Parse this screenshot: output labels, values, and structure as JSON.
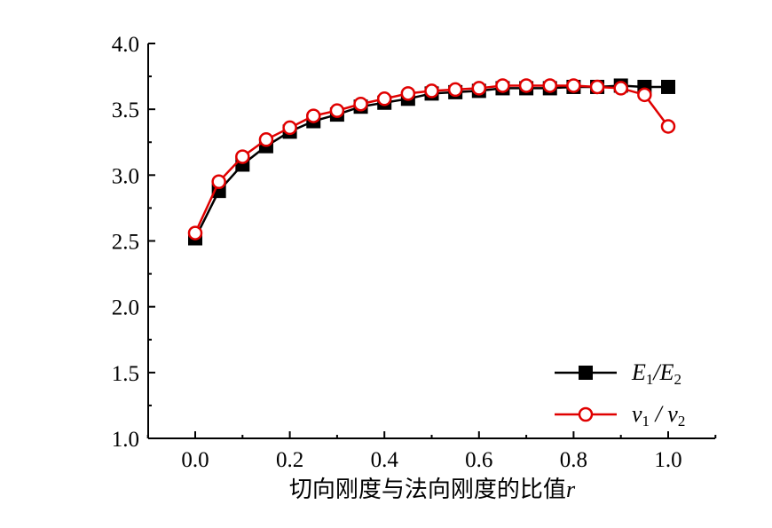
{
  "chart_data": {
    "type": "line",
    "title": "",
    "xlabel": "切向刚度与法向刚度的比值",
    "xlabel_var": "r",
    "ylabel": "",
    "xlim": [
      -0.1,
      1.1
    ],
    "ylim": [
      1.0,
      4.0
    ],
    "xticks": [
      "0.0",
      "0.2",
      "0.4",
      "0.6",
      "0.8",
      "1.0"
    ],
    "yticks": [
      "1.0",
      "1.5",
      "2.0",
      "2.5",
      "3.0",
      "3.5",
      "4.0"
    ],
    "grid": false,
    "legend_position": "bottom-right",
    "x": [
      0,
      0.05,
      0.1,
      0.15,
      0.2,
      0.25,
      0.3,
      0.35,
      0.4,
      0.45,
      0.5,
      0.55,
      0.6,
      0.65,
      0.7,
      0.75,
      0.8,
      0.85,
      0.9,
      0.95,
      1.0
    ],
    "series": [
      {
        "name": "E1/E2",
        "main": "E",
        "sub1": "1",
        "sep": "/",
        "sub2": "2",
        "color": "#000000",
        "marker": "square",
        "values": [
          2.52,
          2.88,
          3.08,
          3.22,
          3.33,
          3.41,
          3.46,
          3.52,
          3.55,
          3.58,
          3.62,
          3.63,
          3.64,
          3.66,
          3.66,
          3.66,
          3.67,
          3.67,
          3.68,
          3.67,
          3.67
        ]
      },
      {
        "name": "v1 / v2",
        "main": "ν",
        "sub1": "1",
        "sep": " / ",
        "sub2": "2",
        "color": "#e00000",
        "marker": "circle",
        "values": [
          2.56,
          2.95,
          3.14,
          3.27,
          3.36,
          3.45,
          3.49,
          3.54,
          3.58,
          3.62,
          3.64,
          3.65,
          3.66,
          3.68,
          3.68,
          3.68,
          3.68,
          3.67,
          3.66,
          3.61,
          3.37
        ]
      }
    ]
  }
}
